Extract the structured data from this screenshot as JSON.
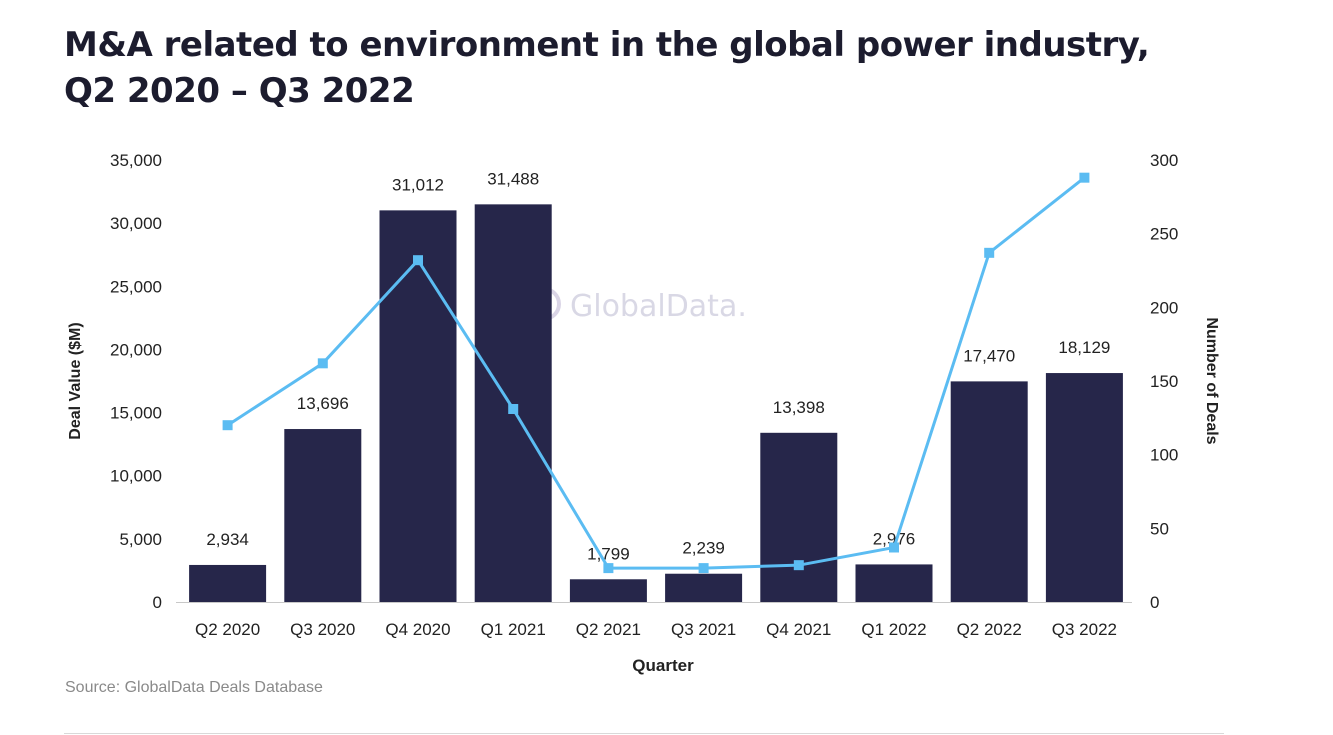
{
  "page": {
    "title_line1": "M&A related to environment in the global power industry,",
    "title_line2": "Q2 2020 – Q3 2022",
    "source": "Source: GlobalData Deals Database",
    "watermark": "GlobalData."
  },
  "chart_data": {
    "type": "bar+line",
    "title": "M&A related to environment in the global power industry, Q2 2020 – Q3 2022",
    "xlabel": "Quarter",
    "ylabel": "Deal Value ($M)",
    "y2label": "Number of Deals",
    "categories": [
      "Q2 2020",
      "Q3 2020",
      "Q4 2020",
      "Q1 2021",
      "Q2 2021",
      "Q3 2021",
      "Q4 2021",
      "Q1 2022",
      "Q2 2022",
      "Q3 2022"
    ],
    "bars": {
      "axis": "left",
      "color": "#26264a",
      "values": [
        2934,
        13696,
        31012,
        31488,
        1799,
        2239,
        13398,
        2976,
        17470,
        18129
      ],
      "labels": [
        "2,934",
        "13,696",
        "31,012",
        "31,488",
        "1,799",
        "2,239",
        "13,398",
        "2,976",
        "17,470",
        "18,129"
      ]
    },
    "line": {
      "axis": "right",
      "color": "#5bbcf2",
      "marker": "square",
      "values": [
        120,
        162,
        232,
        131,
        23,
        23,
        25,
        37,
        237,
        288
      ]
    },
    "ylim": [
      0,
      35000
    ],
    "y_ticks": [
      0,
      5000,
      10000,
      15000,
      20000,
      25000,
      30000,
      35000
    ],
    "y_tick_labels": [
      "0",
      "5,000",
      "10,000",
      "15,000",
      "20,000",
      "25,000",
      "30,000",
      "35,000"
    ],
    "y2lim": [
      0,
      300
    ],
    "y2_ticks": [
      0,
      50,
      100,
      150,
      200,
      250,
      300
    ],
    "y2_tick_labels": [
      "0",
      "50",
      "100",
      "150",
      "200",
      "250",
      "300"
    ],
    "grid": false,
    "legend": "none"
  }
}
